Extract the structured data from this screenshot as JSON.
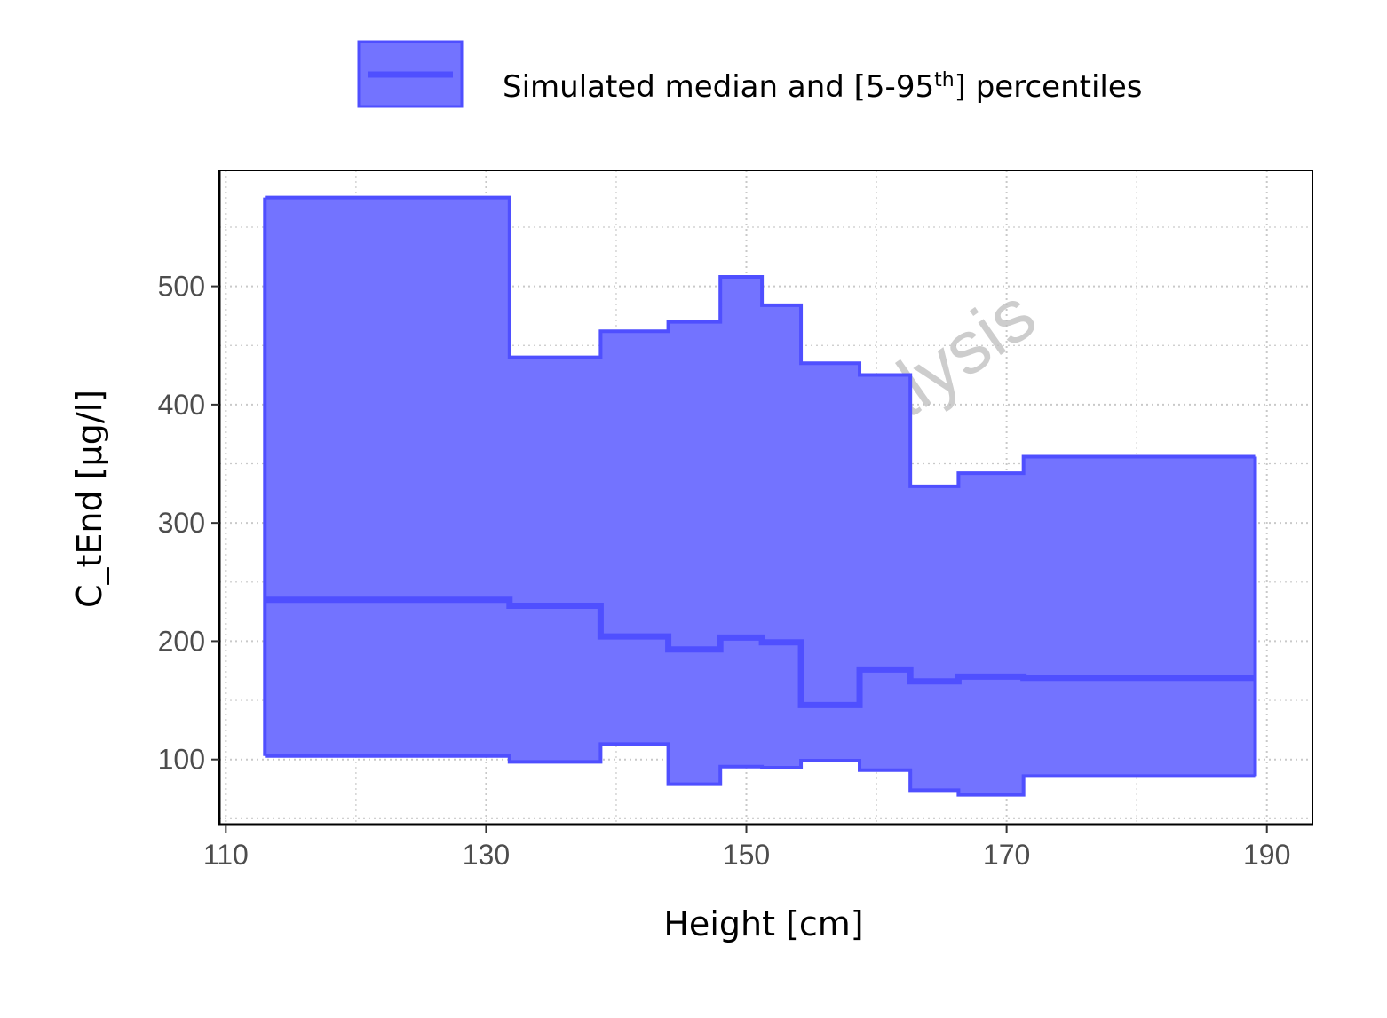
{
  "legend": {
    "label_prefix": "Simulated median and [5-95",
    "label_superscript": "th",
    "label_suffix": "] percentiles"
  },
  "watermark": "preliminary analysis",
  "colors": {
    "band_fill": "#7373ff",
    "band_line": "#4f4fff",
    "grid": "#c9c9c9"
  },
  "chart_data": {
    "type": "area",
    "xlabel": "Height [cm]",
    "ylabel": "C_tEnd [µg/l]",
    "xlim": [
      109.5,
      193.5
    ],
    "ylim": [
      45,
      598
    ],
    "x_ticks": [
      110,
      130,
      150,
      170,
      190
    ],
    "y_ticks": [
      100,
      200,
      300,
      400,
      500
    ],
    "grid": true,
    "legend_position": "top",
    "step_boundaries": [
      113,
      131.8,
      138.8,
      144,
      148,
      151.2,
      154.2,
      158.7,
      162.6,
      166.3,
      171.3,
      189.1
    ],
    "series": [
      {
        "name": "Simulated median and [5-95th] percentiles",
        "median": [
          235,
          230,
          204,
          193,
          203,
          199,
          146,
          176,
          166,
          170,
          169
        ],
        "p5": [
          103,
          98,
          113,
          79,
          94,
          93,
          99,
          91,
          74,
          70,
          86
        ],
        "p95": [
          575,
          440,
          462,
          470,
          508,
          484,
          435,
          425,
          331,
          342,
          356
        ]
      }
    ]
  }
}
